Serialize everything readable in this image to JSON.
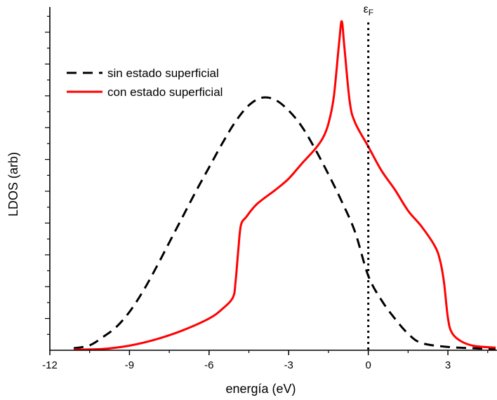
{
  "chart_data": {
    "type": "line",
    "xlabel": "energía (eV)",
    "ylabel": "LDOS (arb)",
    "xlim": [
      -12,
      4.85
    ],
    "ylim": [
      0,
      1.0
    ],
    "xticks": [
      {
        "value": -12,
        "label": "-12"
      },
      {
        "value": -9,
        "label": "-9"
      },
      {
        "value": -6,
        "label": "-6"
      },
      {
        "value": -3,
        "label": "-3"
      },
      {
        "value": 0,
        "label": "0"
      },
      {
        "value": 3,
        "label": "3"
      }
    ],
    "fermi_level": {
      "x": 0,
      "label": "ε",
      "subscript": "F"
    },
    "legend_position": "top-left",
    "series": [
      {
        "name": "sin estado superficial",
        "color": "#000000",
        "style": "dashed",
        "points": [
          [
            -11.1,
            0.006
          ],
          [
            -10.5,
            0.015
          ],
          [
            -10.0,
            0.04
          ],
          [
            -9.5,
            0.07
          ],
          [
            -9.0,
            0.116
          ],
          [
            -8.5,
            0.177
          ],
          [
            -8.0,
            0.249
          ],
          [
            -7.5,
            0.326
          ],
          [
            -7.0,
            0.403
          ],
          [
            -6.5,
            0.48
          ],
          [
            -6.0,
            0.553
          ],
          [
            -5.5,
            0.626
          ],
          [
            -5.0,
            0.692
          ],
          [
            -4.5,
            0.741
          ],
          [
            -4.0,
            0.764
          ],
          [
            -3.5,
            0.757
          ],
          [
            -3.0,
            0.725
          ],
          [
            -2.5,
            0.676
          ],
          [
            -2.0,
            0.608
          ],
          [
            -1.5,
            0.532
          ],
          [
            -1.0,
            0.45
          ],
          [
            -0.5,
            0.358
          ],
          [
            0.0,
            0.225
          ],
          [
            0.5,
            0.151
          ],
          [
            1.0,
            0.096
          ],
          [
            1.5,
            0.05
          ],
          [
            2.0,
            0.022
          ],
          [
            3.0,
            0.01
          ],
          [
            4.0,
            0.006
          ],
          [
            4.8,
            0.004
          ]
        ]
      },
      {
        "name": "con estado superficial",
        "color": "#ff0000",
        "style": "solid",
        "points": [
          [
            -11.1,
            0.002
          ],
          [
            -10.0,
            0.004
          ],
          [
            -9.0,
            0.014
          ],
          [
            -8.0,
            0.033
          ],
          [
            -7.0,
            0.06
          ],
          [
            -6.0,
            0.096
          ],
          [
            -5.5,
            0.125
          ],
          [
            -5.1,
            0.16
          ],
          [
            -5.0,
            0.209
          ],
          [
            -4.9,
            0.302
          ],
          [
            -4.8,
            0.378
          ],
          [
            -4.6,
            0.403
          ],
          [
            -4.2,
            0.442
          ],
          [
            -3.5,
            0.485
          ],
          [
            -3.0,
            0.519
          ],
          [
            -2.5,
            0.565
          ],
          [
            -2.0,
            0.609
          ],
          [
            -1.7,
            0.644
          ],
          [
            -1.5,
            0.686
          ],
          [
            -1.3,
            0.766
          ],
          [
            -1.1,
            0.93
          ],
          [
            -1.0,
            0.995
          ],
          [
            -0.9,
            0.916
          ],
          [
            -0.7,
            0.752
          ],
          [
            -0.5,
            0.689
          ],
          [
            0.0,
            0.616
          ],
          [
            0.5,
            0.543
          ],
          [
            1.0,
            0.486
          ],
          [
            1.5,
            0.422
          ],
          [
            2.0,
            0.375
          ],
          [
            2.5,
            0.316
          ],
          [
            2.7,
            0.273
          ],
          [
            2.85,
            0.207
          ],
          [
            3.0,
            0.098
          ],
          [
            3.15,
            0.053
          ],
          [
            3.5,
            0.027
          ],
          [
            4.0,
            0.013
          ],
          [
            4.8,
            0.008
          ]
        ]
      }
    ]
  }
}
